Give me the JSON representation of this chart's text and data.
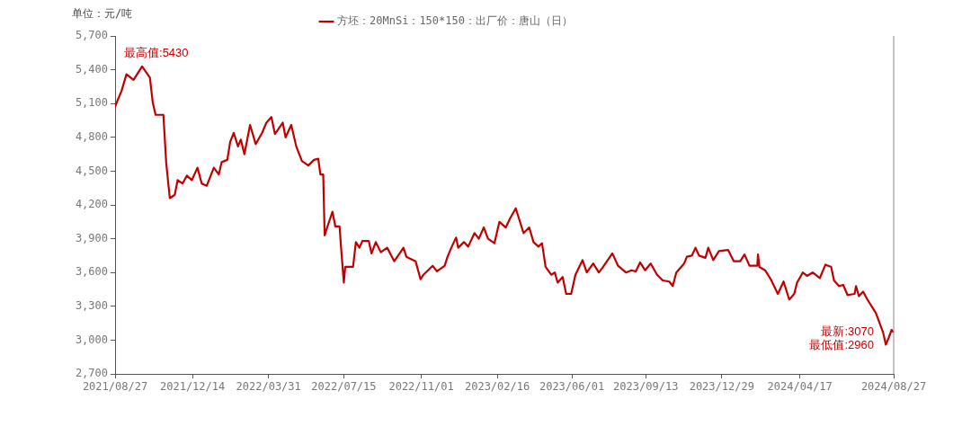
{
  "chart_data": {
    "type": "line",
    "ylabel": "单位：元/吨",
    "legend": "top",
    "xlim": [
      "2021-08-27",
      "2024-08-27"
    ],
    "xticks": [
      {
        "value": "2021-08-27",
        "label": "2021/08/27"
      },
      {
        "value": "2021-12-14",
        "label": "2021/12/14"
      },
      {
        "value": "2022-03-31",
        "label": "2022/03/31"
      },
      {
        "value": "2022-07-15",
        "label": "2022/07/15"
      },
      {
        "value": "2022-11-01",
        "label": "2022/11/01"
      },
      {
        "value": "2023-02-16",
        "label": "2023/02/16"
      },
      {
        "value": "2023-06-01",
        "label": "2023/06/01"
      },
      {
        "value": "2023-09-13",
        "label": "2023/09/13"
      },
      {
        "value": "2023-12-29",
        "label": "2023/12/29"
      },
      {
        "value": "2024-04-17",
        "label": "2024/04/17"
      },
      {
        "value": "2024-08-27",
        "label": "2024/08/27"
      }
    ],
    "ylim": [
      2700,
      5700
    ],
    "yticks": [
      {
        "value": 2700,
        "label": "2,700"
      },
      {
        "value": 3000,
        "label": "3,000"
      },
      {
        "value": 3300,
        "label": "3,300"
      },
      {
        "value": 3600,
        "label": "3,600"
      },
      {
        "value": 3900,
        "label": "3,900"
      },
      {
        "value": 4200,
        "label": "4,200"
      },
      {
        "value": 4500,
        "label": "4,500"
      },
      {
        "value": 4800,
        "label": "4,800"
      },
      {
        "value": 5100,
        "label": "5,100"
      },
      {
        "value": 5400,
        "label": "5,400"
      },
      {
        "value": 5700,
        "label": "5,700"
      }
    ],
    "grid": false,
    "marker": "none",
    "line_style": "solid",
    "ref_lines": [
      {
        "axis": "x",
        "value": "2024-08-27",
        "color": "#888888"
      }
    ],
    "annotations": [
      {
        "text": "最高值:5430",
        "x": "2021-10-04",
        "y": 5430
      },
      {
        "text": "最新:3070",
        "x": "2024-08-27",
        "y": 3070
      },
      {
        "text": "最低值:2960",
        "x": "2024-08-16",
        "y": 2960
      }
    ],
    "series": [
      {
        "name": "方坯：20MnSi：150*150：出厂价：唐山（日）",
        "color": "#c00000",
        "x": [
          "2021-08-27",
          "2021-08-30",
          "2021-09-05",
          "2021-09-12",
          "2021-09-22",
          "2021-10-04",
          "2021-10-15",
          "2021-10-19",
          "2021-10-23",
          "2021-11-03",
          "2021-11-07",
          "2021-11-12",
          "2021-11-19",
          "2021-11-23",
          "2021-11-30",
          "2021-12-06",
          "2021-12-13",
          "2021-12-21",
          "2021-12-27",
          "2022-01-03",
          "2022-01-13",
          "2022-01-20",
          "2022-01-24",
          "2022-02-01",
          "2022-02-05",
          "2022-02-10",
          "2022-02-16",
          "2022-02-20",
          "2022-02-25",
          "2022-03-05",
          "2022-03-13",
          "2022-03-22",
          "2022-03-28",
          "2022-04-04",
          "2022-04-09",
          "2022-04-20",
          "2022-04-24",
          "2022-05-02",
          "2022-05-09",
          "2022-05-17",
          "2022-05-26",
          "2022-06-03",
          "2022-06-09",
          "2022-06-12",
          "2022-06-16",
          "2022-06-18",
          "2022-06-22",
          "2022-06-29",
          "2022-07-03",
          "2022-07-09",
          "2022-07-11",
          "2022-07-15",
          "2022-07-17",
          "2022-07-28",
          "2022-08-01",
          "2022-08-06",
          "2022-08-10",
          "2022-08-19",
          "2022-08-23",
          "2022-08-29",
          "2022-09-05",
          "2022-09-14",
          "2022-09-24",
          "2022-10-07",
          "2022-10-11",
          "2022-10-24",
          "2022-10-31",
          "2022-11-04",
          "2022-11-17",
          "2022-11-23",
          "2022-12-04",
          "2022-12-08",
          "2022-12-14",
          "2022-12-20",
          "2022-12-23",
          "2022-12-31",
          "2023-01-06",
          "2023-01-15",
          "2023-01-21",
          "2023-01-28",
          "2023-02-03",
          "2023-02-12",
          "2023-02-19",
          "2023-02-28",
          "2023-03-06",
          "2023-03-14",
          "2023-03-25",
          "2023-04-02",
          "2023-04-08",
          "2023-04-15",
          "2023-04-20",
          "2023-04-25",
          "2023-05-03",
          "2023-05-08",
          "2023-05-12",
          "2023-05-19",
          "2023-05-24",
          "2023-05-31",
          "2023-06-06",
          "2023-06-16",
          "2023-06-22",
          "2023-07-01",
          "2023-07-09",
          "2023-07-15",
          "2023-07-28",
          "2023-08-05",
          "2023-08-16",
          "2023-08-24",
          "2023-08-30",
          "2023-09-05",
          "2023-09-12",
          "2023-09-20",
          "2023-09-29",
          "2023-10-07",
          "2023-10-16",
          "2023-10-21",
          "2023-10-26",
          "2023-11-06",
          "2023-11-10",
          "2023-11-17",
          "2023-11-22",
          "2023-11-27",
          "2023-12-06",
          "2023-12-10",
          "2023-12-17",
          "2023-12-25",
          "2024-01-07",
          "2024-01-15",
          "2024-01-24",
          "2024-01-30",
          "2024-02-06",
          "2024-02-17",
          "2024-02-18",
          "2024-02-20",
          "2024-02-28",
          "2024-03-07",
          "2024-03-17",
          "2024-03-25",
          "2024-04-02",
          "2024-04-09",
          "2024-04-13",
          "2024-04-21",
          "2024-04-27",
          "2024-05-05",
          "2024-05-15",
          "2024-05-23",
          "2024-05-31",
          "2024-06-04",
          "2024-06-11",
          "2024-06-17",
          "2024-06-23",
          "2024-07-03",
          "2024-07-05",
          "2024-07-09",
          "2024-07-15",
          "2024-07-21",
          "2024-08-02",
          "2024-08-12",
          "2024-08-16",
          "2024-08-20",
          "2024-08-24",
          "2024-08-27"
        ],
        "values": [
          5070,
          5120,
          5210,
          5360,
          5310,
          5430,
          5330,
          5110,
          5000,
          5000,
          4570,
          4260,
          4290,
          4420,
          4390,
          4460,
          4420,
          4530,
          4390,
          4370,
          4530,
          4470,
          4580,
          4600,
          4760,
          4840,
          4720,
          4780,
          4650,
          4910,
          4740,
          4840,
          4930,
          4980,
          4830,
          4930,
          4800,
          4910,
          4720,
          4590,
          4550,
          4600,
          4610,
          4470,
          4470,
          3930,
          4010,
          4140,
          4010,
          4010,
          3830,
          3510,
          3650,
          3650,
          3870,
          3820,
          3880,
          3880,
          3770,
          3870,
          3780,
          3820,
          3700,
          3820,
          3740,
          3700,
          3540,
          3580,
          3660,
          3610,
          3660,
          3740,
          3830,
          3910,
          3820,
          3870,
          3830,
          3950,
          3900,
          4000,
          3900,
          3860,
          4050,
          4000,
          4080,
          4170,
          3950,
          4000,
          3870,
          3830,
          3860,
          3650,
          3580,
          3600,
          3510,
          3560,
          3410,
          3410,
          3580,
          3710,
          3600,
          3680,
          3600,
          3650,
          3770,
          3660,
          3600,
          3620,
          3610,
          3690,
          3620,
          3680,
          3580,
          3530,
          3520,
          3480,
          3600,
          3680,
          3740,
          3750,
          3820,
          3750,
          3730,
          3820,
          3710,
          3790,
          3800,
          3700,
          3700,
          3760,
          3660,
          3660,
          3760,
          3650,
          3620,
          3540,
          3410,
          3520,
          3360,
          3410,
          3510,
          3600,
          3570,
          3600,
          3550,
          3670,
          3650,
          3530,
          3480,
          3490,
          3400,
          3410,
          3480,
          3390,
          3430,
          3360,
          3240,
          3070,
          2960,
          3020,
          3090,
          3070
        ]
      }
    ]
  }
}
